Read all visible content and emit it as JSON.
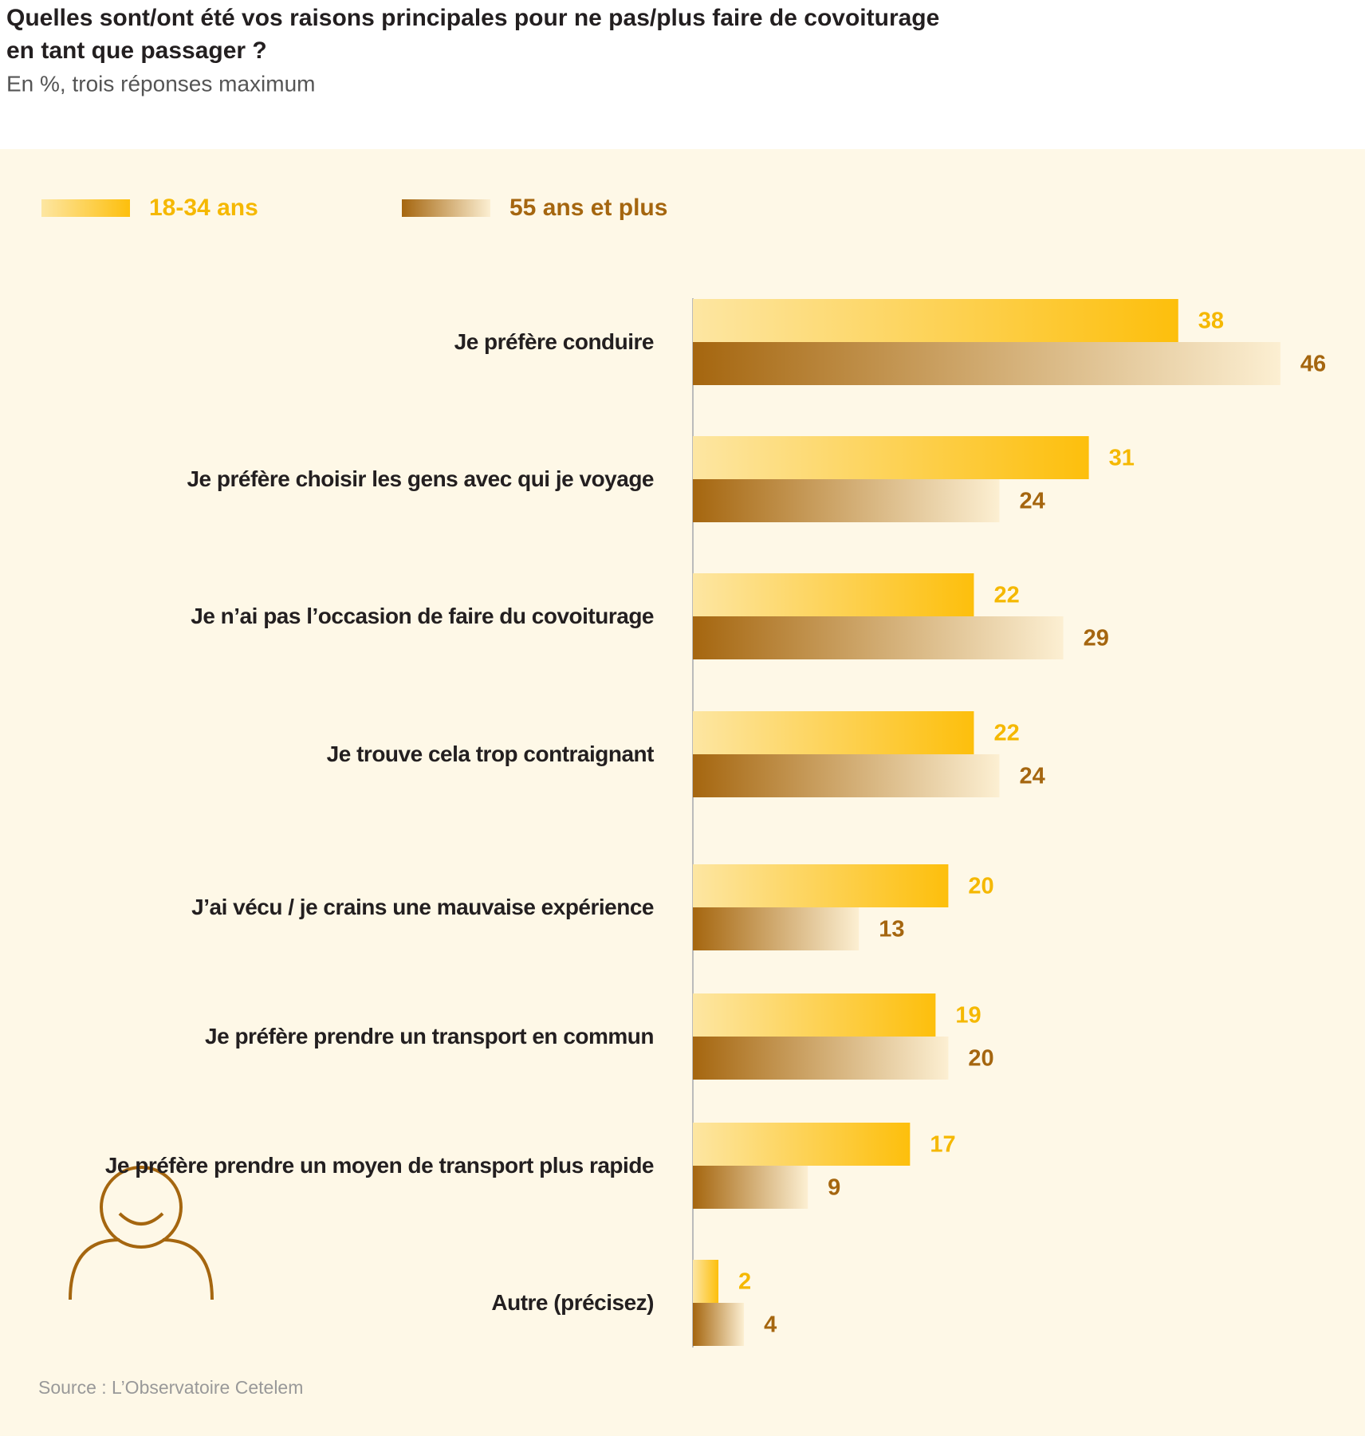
{
  "chart_data": {
    "type": "bar",
    "orientation": "horizontal",
    "title": "Quelles sont/ont été vos raisons principales pour ne pas/plus faire de covoiturage en tant que passager ?",
    "subtitle": "En %, trois réponses maximum",
    "categories": [
      "Je préfère conduire",
      "Je préfère choisir les gens avec qui je voyage",
      "Je n’ai pas l’occasion de faire du covoiturage",
      "Je trouve cela trop contraignant",
      "J’ai vécu / je crains une mauvaise expérience",
      "Je préfère prendre un transport en commun",
      "Je préfère prendre un moyen de transport plus rapide",
      "Autre (précisez)"
    ],
    "series": [
      {
        "name": "18-34 ans",
        "color": "#f5b800",
        "values": [
          38,
          31,
          22,
          22,
          20,
          19,
          17,
          2
        ]
      },
      {
        "name": "55 ans et plus",
        "color": "#a5660f",
        "values": [
          46,
          24,
          29,
          24,
          13,
          20,
          9,
          4
        ]
      }
    ],
    "xlim": [
      0,
      50
    ],
    "source": "Source : L’Observatoire Cetelem"
  }
}
